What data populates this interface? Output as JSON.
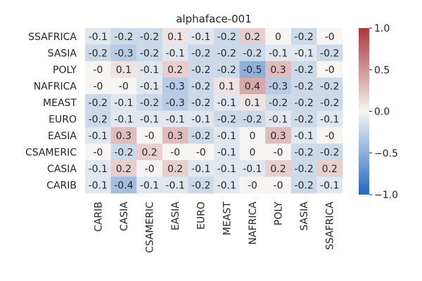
{
  "chart_data": {
    "type": "heatmap",
    "title": "alphaface-001",
    "rows": [
      "SSAFRICA",
      "SASIA",
      "POLY",
      "NAFRICA",
      "MEAST",
      "EURO",
      "EASIA",
      "CSAMERIC",
      "CASIA",
      "CARIB"
    ],
    "columns": [
      "CARIB",
      "CASIA",
      "CSAMERIC",
      "EASIA",
      "EURO",
      "MEAST",
      "NAFRICA",
      "POLY",
      "SASIA",
      "SSAFRICA"
    ],
    "values": [
      [
        -0.1,
        -0.2,
        -0.2,
        0.1,
        -0.1,
        -0.2,
        0.2,
        0,
        -0.2,
        -0.0
      ],
      [
        -0.2,
        -0.3,
        -0.2,
        -0.1,
        -0.2,
        -0.2,
        -0.2,
        -0.1,
        -0.1,
        -0.2
      ],
      [
        -0.0,
        0.1,
        -0.1,
        0.2,
        -0.2,
        -0.2,
        -0.5,
        0.3,
        -0.2,
        -0.0
      ],
      [
        -0.0,
        -0.0,
        -0.1,
        -0.3,
        -0.2,
        0.1,
        0.4,
        -0.3,
        -0.2,
        -0.2
      ],
      [
        -0.2,
        -0.1,
        -0.2,
        -0.3,
        -0.2,
        -0.1,
        0.1,
        -0.2,
        -0.2,
        -0.2
      ],
      [
        -0.2,
        -0.1,
        -0.1,
        -0.1,
        -0.1,
        -0.2,
        -0.2,
        -0.1,
        -0.2,
        -0.1
      ],
      [
        -0.1,
        0.3,
        -0.0,
        0.3,
        -0.2,
        -0.1,
        0,
        0.3,
        -0.1,
        -0.0
      ],
      [
        -0.0,
        -0.2,
        0.2,
        -0.0,
        -0.0,
        -0.1,
        0,
        -0.0,
        -0.2,
        -0.2
      ],
      [
        -0.1,
        0.2,
        -0.0,
        0.2,
        -0.1,
        -0.1,
        -0.1,
        0.2,
        -0.2,
        0.2
      ],
      [
        -0.1,
        -0.4,
        -0.1,
        -0.1,
        -0.2,
        -0.1,
        -0.0,
        -0.0,
        -0.2,
        -0.1
      ]
    ],
    "cell_labels": [
      [
        "-0.1",
        "-0.2",
        "-0.2",
        "0.1",
        "-0.1",
        "-0.2",
        "0.2",
        "0",
        "-0.2",
        "-0"
      ],
      [
        "-0.2",
        "-0.3",
        "-0.2",
        "-0.1",
        "-0.2",
        "-0.2",
        "-0.2",
        "-0.1",
        "-0.1",
        "-0.2"
      ],
      [
        "-0",
        "0.1",
        "-0.1",
        "0.2",
        "-0.2",
        "-0.2",
        "-0.5",
        "0.3",
        "-0.2",
        "-0"
      ],
      [
        "-0",
        "-0",
        "-0.1",
        "-0.3",
        "-0.2",
        "0.1",
        "0.4",
        "-0.3",
        "-0.2",
        "-0.2"
      ],
      [
        "-0.2",
        "-0.1",
        "-0.2",
        "-0.3",
        "-0.2",
        "-0.1",
        "0.1",
        "-0.2",
        "-0.2",
        "-0.2"
      ],
      [
        "-0.2",
        "-0.1",
        "-0.1",
        "-0.1",
        "-0.1",
        "-0.2",
        "-0.2",
        "-0.1",
        "-0.2",
        "-0.1"
      ],
      [
        "-0.1",
        "0.3",
        "-0",
        "0.3",
        "-0.2",
        "-0.1",
        "0",
        "0.3",
        "-0.1",
        "-0"
      ],
      [
        "-0",
        "-0.2",
        "0.2",
        "-0",
        "-0",
        "-0.1",
        "0",
        "-0",
        "-0.2",
        "-0.2"
      ],
      [
        "-0.1",
        "0.2",
        "-0",
        "0.2",
        "-0.1",
        "-0.1",
        "-0.1",
        "0.2",
        "-0.2",
        "0.2"
      ],
      [
        "-0.1",
        "-0.4",
        "-0.1",
        "-0.1",
        "-0.2",
        "-0.1",
        "-0",
        "-0",
        "-0.2",
        "-0.1"
      ]
    ],
    "colorbar": {
      "vmin": -1.0,
      "vmax": 1.0,
      "ticks": [
        1.0,
        0.5,
        0.0,
        -0.5,
        -1.0
      ],
      "tick_labels": [
        "1.0",
        "0.5",
        "0.0",
        "−0.5",
        "−1.0"
      ],
      "colormap": "vlag",
      "color_low": "#2369bd",
      "color_mid": "#f6f5f4",
      "color_high": "#a9373b"
    },
    "grid": false,
    "legend": "right"
  }
}
